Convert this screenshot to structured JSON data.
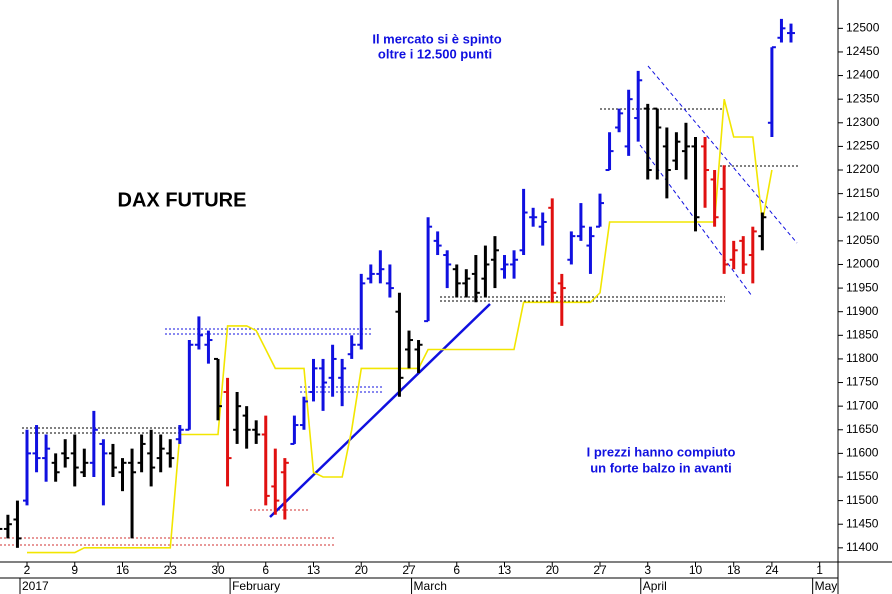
{
  "chart_data": {
    "type": "ohlc",
    "title": "DAX FUTURE",
    "annotations": [
      "Il mercato si è spinto",
      "oltre i 12.500 punti",
      "I prezzi hanno compiuto",
      "un forte balzo in avanti"
    ],
    "categories": [
      null,
      null,
      null,
      "2",
      null,
      null,
      null,
      null,
      "9",
      null,
      null,
      null,
      null,
      "16",
      null,
      null,
      null,
      null,
      "23",
      null,
      null,
      null,
      null,
      "30",
      null,
      null,
      null,
      null,
      "6",
      null,
      null,
      null,
      null,
      "13",
      null,
      null,
      null,
      null,
      "20",
      null,
      null,
      null,
      null,
      "27",
      null,
      null,
      null,
      null,
      "6",
      null,
      null,
      null,
      null,
      "13",
      null,
      null,
      null,
      null,
      "20",
      null,
      null,
      null,
      null,
      "27",
      null,
      null,
      null,
      null,
      "3",
      null,
      null,
      null,
      null,
      "10",
      null,
      null,
      null,
      "18",
      null,
      null,
      null,
      "24",
      null,
      null,
      null,
      null,
      "1"
    ],
    "month_categories": [
      null,
      null,
      null,
      "2017",
      null,
      null,
      null,
      null,
      null,
      null,
      null,
      null,
      null,
      null,
      null,
      null,
      null,
      null,
      null,
      null,
      null,
      null,
      null,
      null,
      null,
      "February",
      null,
      null,
      null,
      null,
      null,
      null,
      null,
      null,
      null,
      null,
      null,
      null,
      null,
      null,
      null,
      null,
      null,
      null,
      "March",
      null,
      null,
      null,
      null,
      null,
      null,
      null,
      null,
      null,
      null,
      null,
      null,
      null,
      null,
      null,
      null,
      null,
      null,
      null,
      null,
      null,
      null,
      null,
      "April",
      null,
      null,
      null,
      null,
      null,
      null,
      null,
      null,
      null,
      null,
      null,
      null,
      null,
      null,
      null,
      null,
      null,
      "May"
    ],
    "open": [
      11450,
      11440,
      11460,
      11500,
      11600,
      11590,
      11580,
      11600,
      11600,
      11560,
      11580,
      11620,
      11600,
      11560,
      11580,
      11580,
      11600,
      11590,
      11600,
      11630,
      11650,
      11830,
      11830,
      11800,
      11730,
      11650,
      11680,
      11650,
      11640,
      11530,
      11560,
      11620,
      11660,
      11730,
      11780,
      11760,
      11760,
      11810,
      11830,
      11970,
      11980,
      11960,
      11900,
      11820,
      11820,
      11880,
      12050,
      12020,
      11990,
      11960,
      11980,
      11970,
      12010,
      11990,
      12000,
      12030,
      12100,
      12080,
      12120,
      11960,
      12010,
      12060,
      12040,
      12080,
      12200,
      12290,
      12250,
      12310,
      12330,
      12330,
      12250,
      12220,
      12240,
      12250,
      12250,
      12180,
      12160,
      12010,
      12050,
      12020,
      12060,
      12300,
      12480,
      12490,
      null,
      null,
      null
    ],
    "high": [
      11470,
      11470,
      11500,
      11650,
      11660,
      11640,
      11600,
      11630,
      11640,
      11610,
      11690,
      11630,
      11620,
      11590,
      11610,
      11640,
      11650,
      11640,
      11630,
      11660,
      11840,
      11890,
      11860,
      11800,
      11760,
      11730,
      11700,
      11670,
      11680,
      11610,
      11590,
      11680,
      11720,
      11800,
      11800,
      11830,
      11800,
      11850,
      11980,
      12000,
      12030,
      12000,
      11940,
      11860,
      11840,
      12100,
      12070,
      12030,
      12000,
      11990,
      12020,
      12040,
      12060,
      12020,
      12030,
      12160,
      12120,
      12110,
      12140,
      11980,
      12070,
      12130,
      12080,
      12150,
      12280,
      12330,
      12370,
      12410,
      12340,
      12330,
      12290,
      12280,
      12300,
      12270,
      12270,
      12200,
      12210,
      12050,
      12060,
      12080,
      12110,
      12460,
      12520,
      12510,
      null,
      null,
      null
    ],
    "low": [
      11430,
      11420,
      11400,
      11490,
      11560,
      11540,
      11540,
      11570,
      11530,
      11550,
      11550,
      11490,
      11550,
      11520,
      11420,
      11560,
      11530,
      11560,
      11570,
      11620,
      11650,
      11820,
      11790,
      11670,
      11530,
      11620,
      11610,
      11620,
      11490,
      11470,
      11460,
      11620,
      11650,
      11710,
      11690,
      11720,
      11700,
      11800,
      11820,
      11960,
      11960,
      11930,
      11720,
      11780,
      11770,
      11880,
      12020,
      11950,
      11930,
      11930,
      11920,
      11930,
      11950,
      11970,
      11970,
      12020,
      12080,
      12040,
      11920,
      11870,
      12000,
      12050,
      11980,
      12080,
      12200,
      12280,
      12230,
      12260,
      12180,
      12180,
      12140,
      12200,
      12180,
      12070,
      12120,
      12080,
      11980,
      11990,
      11980,
      11960,
      12030,
      12270,
      12470,
      12470,
      null,
      null,
      null
    ],
    "close": [
      11440,
      11450,
      11420,
      11600,
      11590,
      11610,
      11560,
      11590,
      11570,
      11580,
      11650,
      11600,
      11570,
      11580,
      11560,
      11620,
      11570,
      11610,
      11590,
      11650,
      11830,
      11850,
      11840,
      11700,
      11590,
      11700,
      11650,
      11640,
      11510,
      11500,
      11580,
      11660,
      11710,
      11780,
      11750,
      11800,
      11780,
      11830,
      11960,
      11980,
      11990,
      11950,
      11760,
      11840,
      11830,
      12080,
      12040,
      12000,
      11960,
      11970,
      11940,
      12000,
      12030,
      12000,
      12010,
      12110,
      12100,
      12090,
      11940,
      11950,
      12060,
      12080,
      12060,
      12130,
      12240,
      12320,
      12350,
      12390,
      12200,
      12290,
      12200,
      12260,
      12250,
      12100,
      12200,
      12100,
      12000,
      12030,
      12000,
      12070,
      12100,
      12460,
      12500,
      12490,
      null,
      null,
      null
    ],
    "colors": [
      "#000000",
      "#000000",
      "#000000",
      "#1010e0",
      "#1010e0",
      "#1010e0",
      "#000000",
      "#000000",
      "#000000",
      "#000000",
      "#1010e0",
      "#1010e0",
      "#000000",
      "#000000",
      "#000000",
      "#000000",
      "#000000",
      "#000000",
      "#000000",
      "#1010e0",
      "#1010e0",
      "#1010e0",
      "#1010e0",
      "#000000",
      "#e01010",
      "#000000",
      "#000000",
      "#000000",
      "#e01010",
      "#e01010",
      "#e01010",
      "#1010e0",
      "#1010e0",
      "#1010e0",
      "#1010e0",
      "#1010e0",
      "#1010e0",
      "#1010e0",
      "#1010e0",
      "#1010e0",
      "#1010e0",
      "#1010e0",
      "#000000",
      "#000000",
      "#000000",
      "#1010e0",
      "#1010e0",
      "#1010e0",
      "#000000",
      "#000000",
      "#000000",
      "#000000",
      "#000000",
      "#1010e0",
      "#1010e0",
      "#1010e0",
      "#1010e0",
      "#1010e0",
      "#e01010",
      "#e01010",
      "#1010e0",
      "#1010e0",
      "#1010e0",
      "#1010e0",
      "#1010e0",
      "#1010e0",
      "#1010e0",
      "#1010e0",
      "#000000",
      "#000000",
      "#000000",
      "#000000",
      "#000000",
      "#000000",
      "#e01010",
      "#e01010",
      "#e01010",
      "#e01010",
      "#e01010",
      "#e01010",
      "#000000",
      "#1010e0",
      "#1010e0",
      "#1010e0",
      null,
      null,
      null
    ],
    "line": {
      "color": "#f2e600",
      "values": [
        null,
        null,
        null,
        11390,
        11390,
        11390,
        11390,
        11390,
        11390,
        11400,
        11400,
        11400,
        11400,
        11400,
        11400,
        11400,
        11400,
        11400,
        11400,
        11640,
        11640,
        11640,
        11640,
        11640,
        11870,
        11870,
        11870,
        11860,
        11820,
        11780,
        11780,
        11780,
        11780,
        11560,
        11550,
        11550,
        11550,
        11650,
        11780,
        11780,
        11780,
        11780,
        11780,
        11780,
        11780,
        11820,
        11820,
        11820,
        11820,
        11820,
        11820,
        11820,
        11820,
        11820,
        11820,
        11920,
        11920,
        11920,
        11920,
        11920,
        11920,
        11920,
        11920,
        11940,
        12090,
        12090,
        12090,
        12090,
        12090,
        12090,
        12090,
        12090,
        12090,
        12090,
        12090,
        12090,
        12350,
        12270,
        12270,
        12270,
        12090,
        12200,
        null,
        null,
        null,
        null,
        null
      ]
    },
    "ylim": [
      11370,
      12560
    ],
    "yticks": [
      11400,
      11450,
      11500,
      11550,
      11600,
      11650,
      11700,
      11750,
      11800,
      11850,
      11900,
      11950,
      12000,
      12050,
      12100,
      12150,
      12200,
      12250,
      12300,
      12350,
      12400,
      12450,
      12500
    ]
  }
}
